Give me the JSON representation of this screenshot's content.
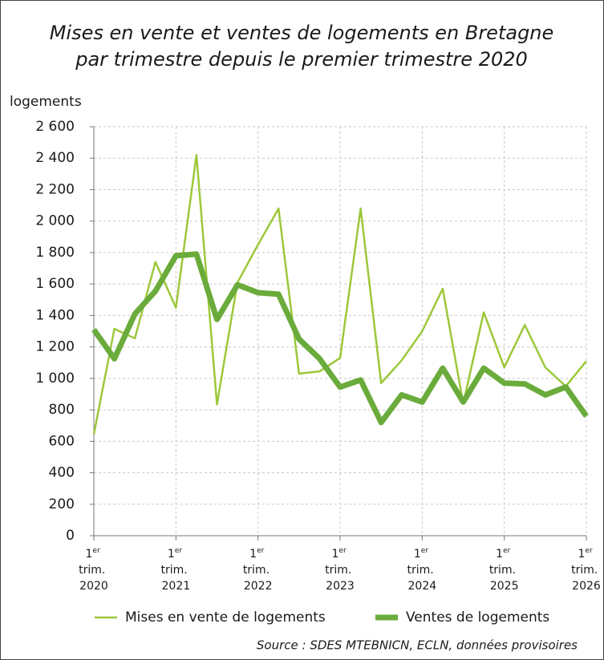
{
  "chart_data": {
    "type": "line",
    "title": [
      "Mises en vente et ventes de logements en Bretagne",
      "par trimestre depuis le premier trimestre 2020"
    ],
    "y_label": "logements",
    "source": "Source : SDES MTEBNICN, ECLN, données provisoires",
    "categories": [
      "1er trim. 2020",
      null,
      null,
      null,
      "1er trim. 2021",
      null,
      null,
      null,
      "1er trim. 2022",
      null,
      null,
      null,
      "1er trim. 2023",
      null,
      null,
      null,
      "1er trim. 2024",
      null,
      null,
      null,
      "1er trim. 2025",
      null,
      null,
      null,
      "1er trim. 2026"
    ],
    "series": [
      {
        "name": "Mises en vente de logements",
        "color": "#9cc83a",
        "values": [
          645,
          1315,
          1255,
          1740,
          1450,
          2420,
          835,
          1610,
          1850,
          2080,
          1030,
          1045,
          1130,
          2080,
          970,
          1115,
          1300,
          1570,
          840,
          1420,
          1070,
          1340,
          1070,
          950,
          1110
        ]
      },
      {
        "name": "Ventes de logements",
        "color": "#6aab3b",
        "values": [
          1310,
          1125,
          1410,
          1555,
          1780,
          1790,
          1375,
          1595,
          1545,
          1535,
          1250,
          1125,
          945,
          990,
          720,
          895,
          850,
          1065,
          850,
          1065,
          970,
          965,
          895,
          945,
          760
        ]
      }
    ],
    "ylim": [
      0,
      2600
    ],
    "yticks": [
      0,
      200,
      400,
      600,
      800,
      {
        "value": 1000,
        "label": "1 000"
      },
      {
        "value": 1200,
        "label": "1 200"
      },
      {
        "value": 1400,
        "label": "1 400"
      },
      {
        "value": 1600,
        "label": "1 600"
      },
      {
        "value": 1800,
        "label": "1 800"
      },
      {
        "value": 2000,
        "label": "2 000"
      },
      {
        "value": 2200,
        "label": "2 200"
      },
      {
        "value": 2400,
        "label": "2 400"
      },
      {
        "value": 2600,
        "label": "2 600"
      }
    ],
    "grid": true
  }
}
